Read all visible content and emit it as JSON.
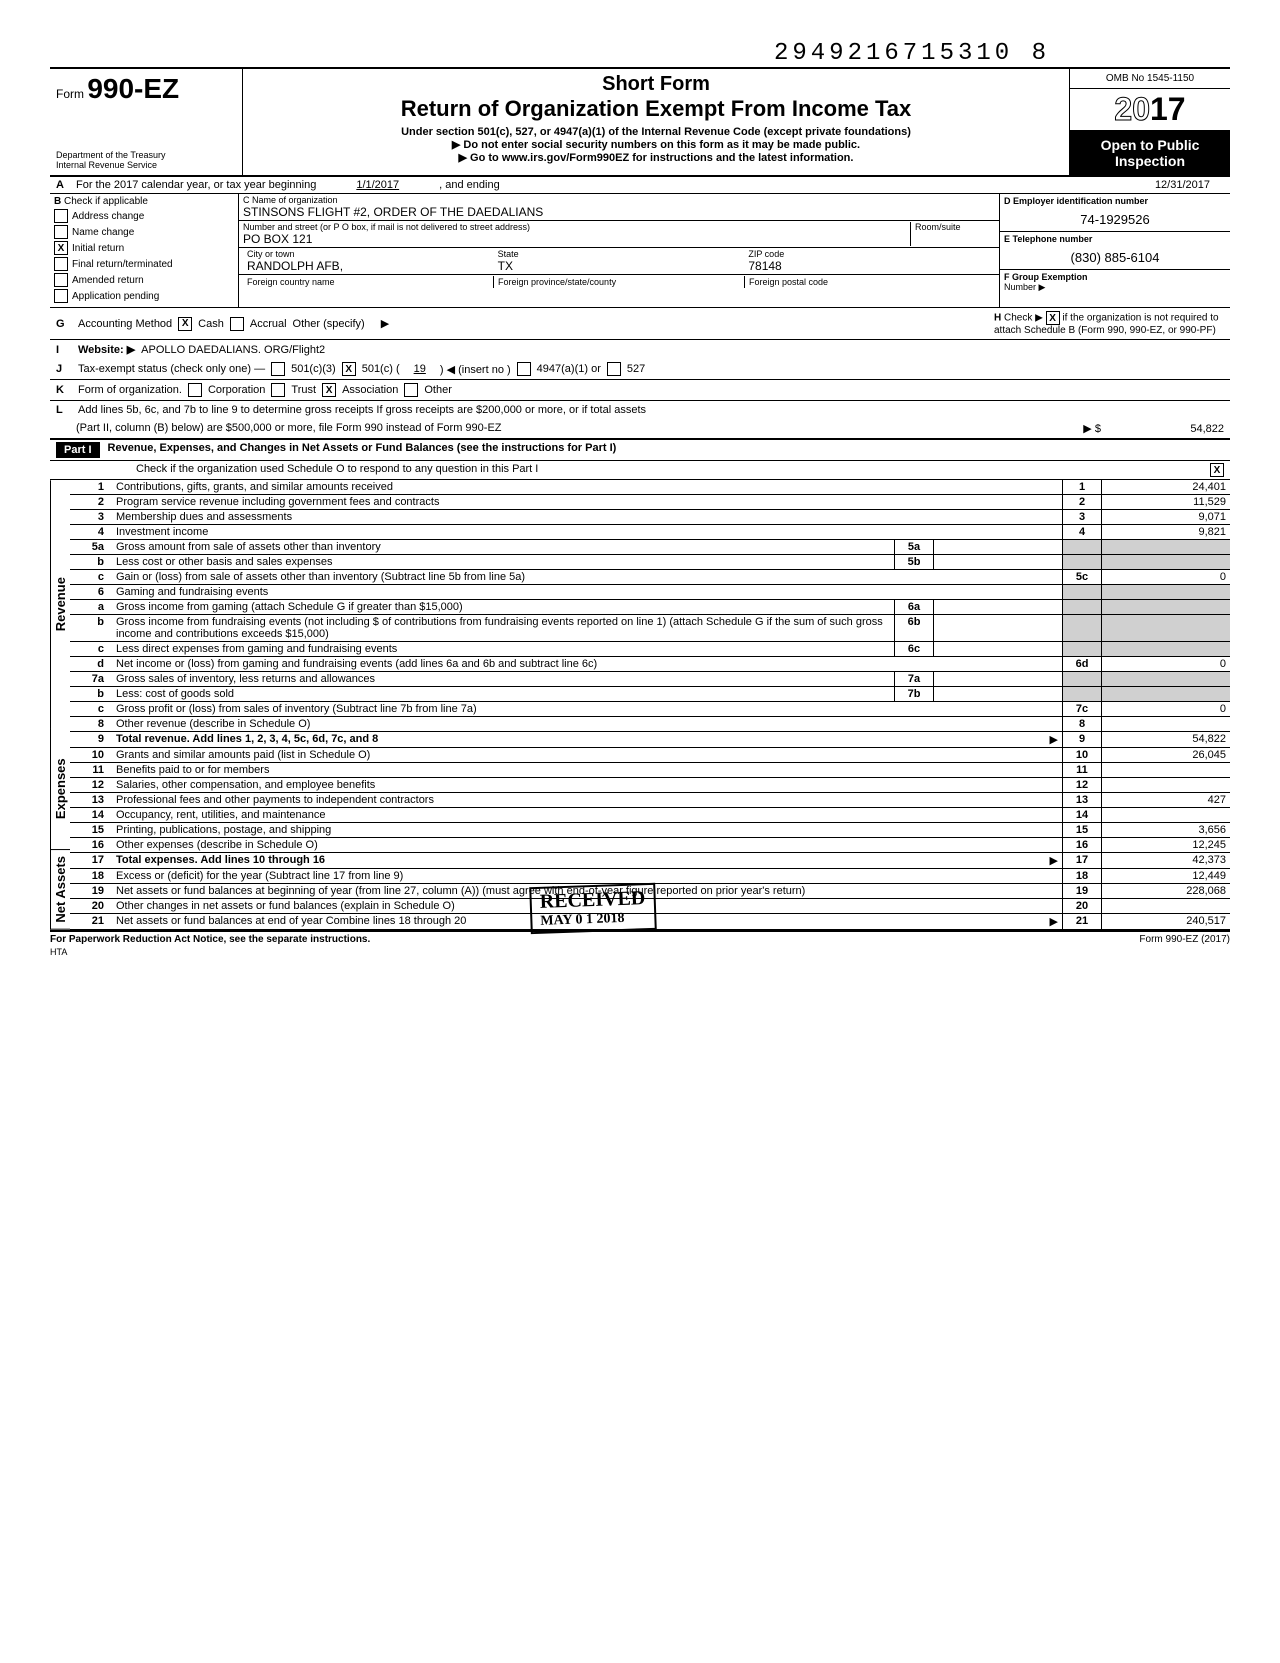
{
  "top_id": "2949216715310 8",
  "omb": "OMB No 1545-1150",
  "year_prefix": "20",
  "year_suffix": "17",
  "form_label": "Form",
  "form_number": "990-EZ",
  "dept1": "Department of the Treasury",
  "dept2": "Internal Revenue Service",
  "title_short": "Short Form",
  "title_main": "Return of Organization Exempt From Income Tax",
  "title_sub": "Under section 501(c), 527, or 4947(a)(1) of the Internal Revenue Code (except private foundations)",
  "title_instr1": "Do not enter social security numbers on this form as it may be made public.",
  "title_instr2": "Go to www.irs.gov/Form990EZ for instructions and the latest information.",
  "open_public1": "Open to Public",
  "open_public2": "Inspection",
  "A_text": "For the 2017 calendar year, or tax year beginning",
  "A_begin": "1/1/2017",
  "A_mid": ", and ending",
  "A_end": "12/31/2017",
  "B_label": "Check if applicable",
  "B_items": [
    "Address change",
    "Name change",
    "Initial return",
    "Final return/terminated",
    "Amended return",
    "Application pending"
  ],
  "B_checked_index": 2,
  "C_name_label": "C  Name of organization",
  "C_name": "STINSONS FLIGHT #2, ORDER OF THE DAEDALIANS",
  "C_street_label": "Number and street (or P O box, if mail is not delivered to street address)",
  "C_room_label": "Room/suite",
  "C_street": "PO BOX 121",
  "C_city_label": "City or town",
  "C_state_label": "State",
  "C_zip_label": "ZIP code",
  "C_city": "RANDOLPH AFB,",
  "C_state": "TX",
  "C_zip": "78148",
  "C_foreign_country": "Foreign country name",
  "C_foreign_state": "Foreign province/state/county",
  "C_foreign_postal": "Foreign postal code",
  "D_label": "D  Employer identification number",
  "D_value": "74-1929526",
  "E_label": "E  Telephone number",
  "E_value": "(830) 885-6104",
  "F_label": "F  Group Exemption",
  "F_label2": "Number ▶",
  "G_label": "Accounting Method",
  "G_cash": "Cash",
  "G_accrual": "Accrual",
  "G_other": "Other (specify)",
  "H_text": "Check ▶",
  "H_text2": "if the organization is not required to attach Schedule B (Form 990, 990-EZ, or 990-PF)",
  "I_label": "Website: ▶",
  "I_value": "APOLLO DAEDALIANS. ORG/Flight2",
  "J_label": "Tax-exempt status (check only one) —",
  "J_501c3": "501(c)(3)",
  "J_501c": "501(c) (",
  "J_501c_num": "19",
  "J_insert": ") ◀ (insert no )",
  "J_4947": "4947(a)(1) or",
  "J_527": "527",
  "K_label": "Form of organization.",
  "K_corp": "Corporation",
  "K_trust": "Trust",
  "K_assoc": "Association",
  "K_other": "Other",
  "L_text": "Add lines 5b, 6c, and 7b to line 9 to determine gross receipts  If gross receipts are $200,000 or more, or if total assets",
  "L_text2": "(Part II, column (B) below) are $500,000 or more, file Form 990 instead of Form 990-EZ",
  "L_amount": "54,822",
  "part1_label": "Part I",
  "part1_title": "Revenue, Expenses, and Changes in Net Assets or Fund Balances (see the instructions for Part I)",
  "part1_check": "Check if the organization used Schedule O to respond to any question in this Part I",
  "vert_labels": [
    "Revenue",
    "Expenses",
    "Net Assets"
  ],
  "lines": [
    {
      "n": "1",
      "desc": "Contributions, gifts, grants, and similar amounts received",
      "rn": "1",
      "val": "24,401"
    },
    {
      "n": "2",
      "desc": "Program service revenue including government fees and contracts",
      "rn": "2",
      "val": "11,529"
    },
    {
      "n": "3",
      "desc": "Membership dues and assessments",
      "rn": "3",
      "val": "9,071"
    },
    {
      "n": "4",
      "desc": "Investment income",
      "rn": "4",
      "val": "9,821"
    },
    {
      "n": "5a",
      "desc": "Gross amount from sale of assets other than inventory",
      "mid": "5a",
      "midval": ""
    },
    {
      "n": "b",
      "desc": "Less  cost or other basis and sales expenses",
      "mid": "5b",
      "midval": ""
    },
    {
      "n": "c",
      "desc": "Gain or (loss) from sale of assets other than inventory (Subtract line 5b from line 5a)",
      "rn": "5c",
      "val": "0"
    },
    {
      "n": "6",
      "desc": "Gaming and fundraising events"
    },
    {
      "n": "a",
      "desc": "Gross income from gaming (attach Schedule G if greater than $15,000)",
      "mid": "6a",
      "midval": ""
    },
    {
      "n": "b",
      "desc": "Gross income from fundraising events (not including    $                  of contributions from fundraising events reported on line 1) (attach Schedule G if the sum of such gross income and contributions exceeds $15,000)",
      "mid": "6b",
      "midval": ""
    },
    {
      "n": "c",
      "desc": "Less  direct expenses from gaming and fundraising events",
      "mid": "6c",
      "midval": ""
    },
    {
      "n": "d",
      "desc": "Net income or (loss) from gaming and fundraising events (add lines 6a and 6b and subtract line 6c)",
      "rn": "6d",
      "val": "0"
    },
    {
      "n": "7a",
      "desc": "Gross sales of inventory, less returns and allowances",
      "mid": "7a",
      "midval": ""
    },
    {
      "n": "b",
      "desc": "Less: cost of goods sold",
      "mid": "7b",
      "midval": ""
    },
    {
      "n": "c",
      "desc": "Gross profit or (loss) from sales of inventory (Subtract line 7b from line 7a)",
      "rn": "7c",
      "val": "0"
    },
    {
      "n": "8",
      "desc": "Other revenue (describe in Schedule O)",
      "rn": "8",
      "val": ""
    },
    {
      "n": "9",
      "desc": "Total revenue. Add lines 1, 2, 3, 4, 5c, 6d, 7c, and 8",
      "rn": "9",
      "val": "54,822",
      "bold": true,
      "arrow": true
    },
    {
      "n": "10",
      "desc": "Grants and similar amounts paid (list in Schedule O)",
      "rn": "10",
      "val": "26,045"
    },
    {
      "n": "11",
      "desc": "Benefits paid to or for members",
      "rn": "11",
      "val": ""
    },
    {
      "n": "12",
      "desc": "Salaries, other compensation, and employee benefits",
      "rn": "12",
      "val": ""
    },
    {
      "n": "13",
      "desc": "Professional fees and other payments to independent contractors",
      "rn": "13",
      "val": "427"
    },
    {
      "n": "14",
      "desc": "Occupancy, rent, utilities, and maintenance",
      "rn": "14",
      "val": ""
    },
    {
      "n": "15",
      "desc": "Printing, publications, postage, and shipping",
      "rn": "15",
      "val": "3,656"
    },
    {
      "n": "16",
      "desc": "Other expenses (describe in Schedule O)",
      "rn": "16",
      "val": "12,245"
    },
    {
      "n": "17",
      "desc": "Total expenses. Add lines 10 through 16",
      "rn": "17",
      "val": "42,373",
      "bold": true,
      "arrow": true
    },
    {
      "n": "18",
      "desc": "Excess or (deficit) for the year (Subtract line 17 from line 9)",
      "rn": "18",
      "val": "12,449"
    },
    {
      "n": "19",
      "desc": "Net assets or fund balances at beginning of year (from line 27, column (A)) (must agree with end-of-year figure reported on prior year's return)",
      "rn": "19",
      "val": "228,068"
    },
    {
      "n": "20",
      "desc": "Other changes in net assets or fund balances (explain in Schedule O)",
      "rn": "20",
      "val": ""
    },
    {
      "n": "21",
      "desc": "Net assets or fund balances at end of year  Combine lines 18 through 20",
      "rn": "21",
      "val": "240,517",
      "arrow": true
    }
  ],
  "received": "RECEIVED",
  "received_date": "MAY 0 1 2018",
  "footer_left": "For Paperwork Reduction Act Notice, see the separate instructions.",
  "footer_hta": "HTA",
  "footer_right": "Form 990-EZ (2017)"
}
